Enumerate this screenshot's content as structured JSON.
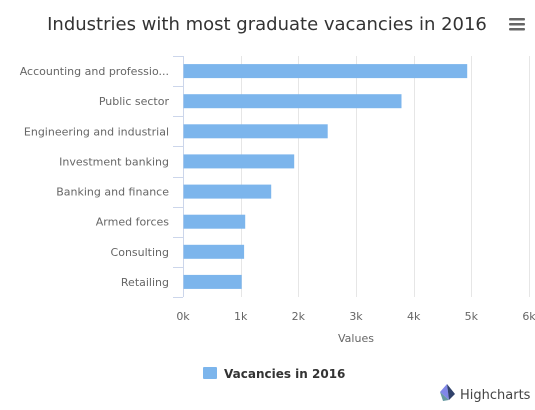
{
  "chart_data": {
    "type": "bar",
    "orientation": "horizontal",
    "title": "Industries with most graduate vacancies in 2016",
    "categories": [
      "Accounting and professio...",
      "Public sector",
      "Engineering and industrial",
      "Investment banking",
      "Banking and finance",
      "Armed forces",
      "Consulting",
      "Retailing"
    ],
    "series": [
      {
        "name": "Vacancies in 2016",
        "color": "#7cb5ec",
        "values": [
          4920,
          3780,
          2500,
          1920,
          1520,
          1070,
          1050,
          1010
        ]
      }
    ],
    "value_axis": {
      "title": "Values",
      "min": 0,
      "max": 6000,
      "ticks": [
        {
          "value": 0,
          "label": "0k"
        },
        {
          "value": 1000,
          "label": "1k"
        },
        {
          "value": 2000,
          "label": "2k"
        },
        {
          "value": 3000,
          "label": "3k"
        },
        {
          "value": 4000,
          "label": "4k"
        },
        {
          "value": 5000,
          "label": "5k"
        },
        {
          "value": 6000,
          "label": "6k"
        }
      ]
    },
    "grid": true,
    "legend": {
      "position": "bottom-center"
    }
  },
  "menu": {
    "icon": "hamburger-menu-icon"
  },
  "credits": {
    "label": "Highcharts",
    "icon": "highcharts-logo-icon"
  }
}
